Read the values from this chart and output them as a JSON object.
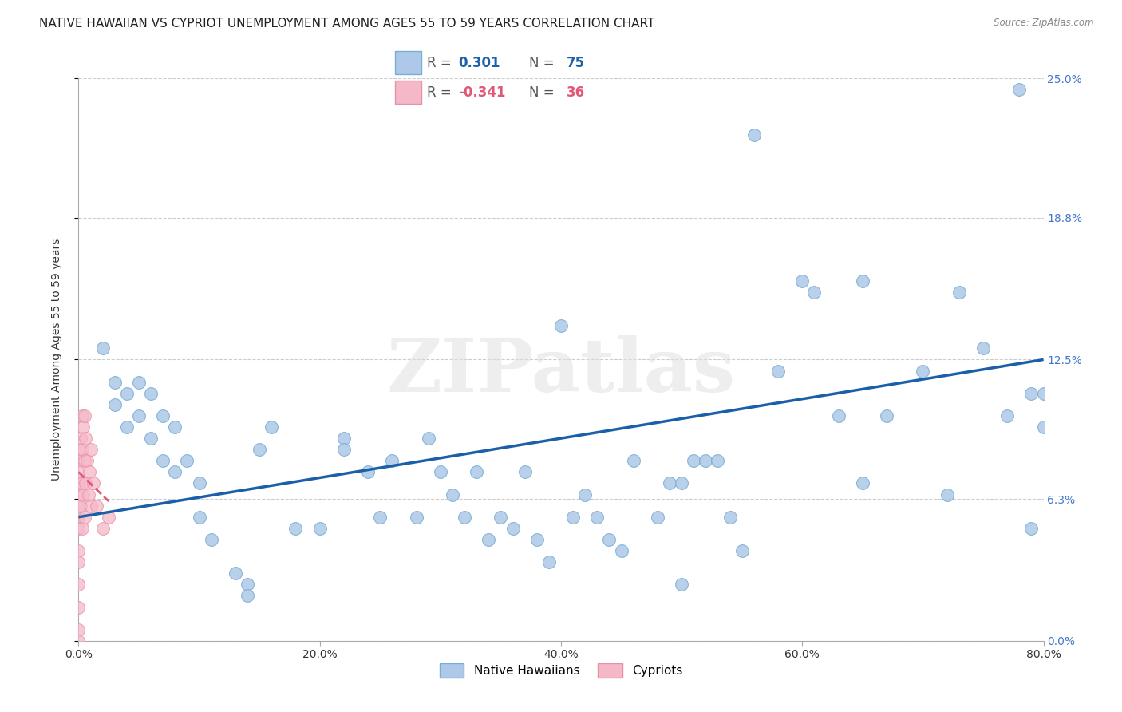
{
  "title": "NATIVE HAWAIIAN VS CYPRIOT UNEMPLOYMENT AMONG AGES 55 TO 59 YEARS CORRELATION CHART",
  "source": "Source: ZipAtlas.com",
  "ylabel": "Unemployment Among Ages 55 to 59 years",
  "xlim": [
    0.0,
    0.8
  ],
  "ylim": [
    0.0,
    0.25
  ],
  "xticks": [
    0.0,
    0.2,
    0.4,
    0.6,
    0.8
  ],
  "xtick_labels": [
    "0.0%",
    "20.0%",
    "40.0%",
    "60.0%",
    "80.0%"
  ],
  "yticks": [
    0.0,
    0.063,
    0.125,
    0.188,
    0.25
  ],
  "ytick_labels": [
    "0.0%",
    "6.3%",
    "12.5%",
    "18.8%",
    "25.0%"
  ],
  "background_color": "#ffffff",
  "watermark": "ZIPatlas",
  "blue_color": "#adc8e8",
  "blue_edge_color": "#7aadd4",
  "blue_line_color": "#1a5fa8",
  "pink_color": "#f5b8c8",
  "pink_edge_color": "#e890a8",
  "pink_line_color": "#e05878",
  "title_fontsize": 11,
  "axis_label_fontsize": 10,
  "tick_fontsize": 10,
  "ytick_color": "#4477cc",
  "native_hawaiian_x": [
    0.02,
    0.03,
    0.03,
    0.04,
    0.04,
    0.05,
    0.05,
    0.06,
    0.06,
    0.07,
    0.07,
    0.08,
    0.08,
    0.09,
    0.1,
    0.1,
    0.11,
    0.13,
    0.14,
    0.14,
    0.15,
    0.16,
    0.18,
    0.2,
    0.22,
    0.22,
    0.24,
    0.25,
    0.26,
    0.28,
    0.29,
    0.3,
    0.31,
    0.32,
    0.33,
    0.34,
    0.35,
    0.36,
    0.37,
    0.38,
    0.39,
    0.4,
    0.41,
    0.42,
    0.43,
    0.44,
    0.45,
    0.46,
    0.48,
    0.49,
    0.5,
    0.51,
    0.52,
    0.53,
    0.54,
    0.55,
    0.56,
    0.58,
    0.6,
    0.61,
    0.63,
    0.65,
    0.67,
    0.7,
    0.72,
    0.73,
    0.75,
    0.77,
    0.78,
    0.79,
    0.79,
    0.8,
    0.8,
    0.65,
    0.5
  ],
  "native_hawaiian_y": [
    0.13,
    0.115,
    0.105,
    0.11,
    0.095,
    0.115,
    0.1,
    0.09,
    0.11,
    0.1,
    0.08,
    0.095,
    0.075,
    0.08,
    0.07,
    0.055,
    0.045,
    0.03,
    0.025,
    0.02,
    0.085,
    0.095,
    0.05,
    0.05,
    0.09,
    0.085,
    0.075,
    0.055,
    0.08,
    0.055,
    0.09,
    0.075,
    0.065,
    0.055,
    0.075,
    0.045,
    0.055,
    0.05,
    0.075,
    0.045,
    0.035,
    0.14,
    0.055,
    0.065,
    0.055,
    0.045,
    0.04,
    0.08,
    0.055,
    0.07,
    0.07,
    0.08,
    0.08,
    0.08,
    0.055,
    0.04,
    0.225,
    0.12,
    0.16,
    0.155,
    0.1,
    0.16,
    0.1,
    0.12,
    0.065,
    0.155,
    0.13,
    0.1,
    0.245,
    0.05,
    0.11,
    0.11,
    0.095,
    0.07,
    0.025
  ],
  "cypriot_x": [
    0.0,
    0.0,
    0.0,
    0.0,
    0.0,
    0.0,
    0.0,
    0.0,
    0.0,
    0.0,
    0.0,
    0.0,
    0.0,
    0.0,
    0.002,
    0.002,
    0.003,
    0.003,
    0.003,
    0.003,
    0.004,
    0.004,
    0.005,
    0.005,
    0.005,
    0.006,
    0.006,
    0.007,
    0.008,
    0.009,
    0.01,
    0.01,
    0.012,
    0.015,
    0.02,
    0.025
  ],
  "cypriot_y": [
    0.085,
    0.08,
    0.075,
    0.07,
    0.065,
    0.06,
    0.055,
    0.05,
    0.04,
    0.035,
    0.025,
    0.015,
    0.005,
    0.0,
    0.09,
    0.06,
    0.1,
    0.085,
    0.07,
    0.05,
    0.095,
    0.065,
    0.1,
    0.08,
    0.055,
    0.09,
    0.07,
    0.08,
    0.065,
    0.075,
    0.085,
    0.06,
    0.07,
    0.06,
    0.05,
    0.055
  ],
  "blue_trendline_x": [
    0.0,
    0.8
  ],
  "blue_trendline_y": [
    0.055,
    0.125
  ],
  "pink_trendline_x": [
    0.0,
    0.025
  ],
  "pink_trendline_y": [
    0.075,
    0.062
  ]
}
